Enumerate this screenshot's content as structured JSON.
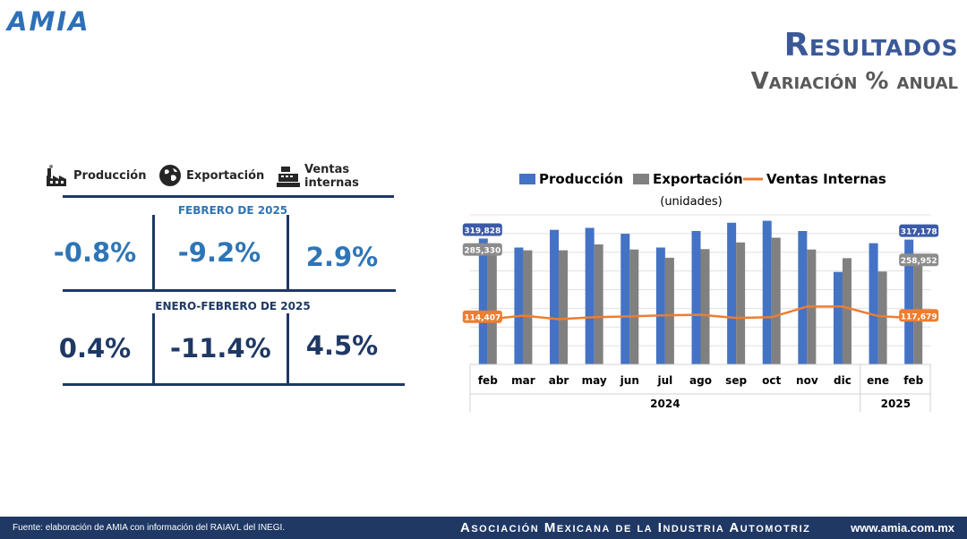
{
  "brand": {
    "logo_text": "AMIA",
    "color": "#2e6fb7"
  },
  "header": {
    "title": "Resultados",
    "subtitle": "Variación % anual"
  },
  "kpi_panel": {
    "legend": [
      {
        "label": "Producción",
        "icon": "factory-icon"
      },
      {
        "label": "Exportación",
        "icon": "globe-icon"
      },
      {
        "label": "Ventas internas",
        "icon": "cash-register-icon"
      }
    ],
    "period_1": {
      "label": "FEBRERO DE 2025",
      "values": [
        "-0.8%",
        "-9.2%",
        "2.9%"
      ]
    },
    "period_2": {
      "label": "ENERO-FEBRERO DE 2025",
      "values": [
        "0.4%",
        "-11.4%",
        "4.5%"
      ]
    }
  },
  "chart_data": {
    "type": "bar",
    "legend_position": "top",
    "subtitle": "(unidades)",
    "categories": [
      "feb",
      "mar",
      "abr",
      "may",
      "jun",
      "jul",
      "ago",
      "sep",
      "oct",
      "nov",
      "dic",
      "ene",
      "feb"
    ],
    "year_groups": [
      {
        "label": "2024",
        "span": 11
      },
      {
        "label": "2025",
        "span": 2
      }
    ],
    "ylim": [
      0,
      380000
    ],
    "grid": true,
    "series": [
      {
        "name": "Producción",
        "type": "bar",
        "color": "#4472c4",
        "values": [
          319828,
          297000,
          342000,
          347000,
          332000,
          297000,
          339000,
          360000,
          365000,
          339000,
          235000,
          308000,
          317178
        ]
      },
      {
        "name": "Exportación",
        "type": "bar",
        "color": "#808080",
        "values": [
          285330,
          290000,
          290000,
          305000,
          292000,
          271000,
          293000,
          310000,
          322000,
          292000,
          270000,
          236000,
          258952
        ]
      },
      {
        "name": "Ventas Internas",
        "type": "line",
        "color": "#ed7d31",
        "values": [
          114407,
          124000,
          115000,
          120000,
          122000,
          125000,
          126000,
          118000,
          120000,
          147000,
          147000,
          123000,
          117679
        ]
      }
    ],
    "data_labels": [
      {
        "series": 0,
        "index": 0,
        "text": "319,828"
      },
      {
        "series": 1,
        "index": 0,
        "text": "285,330"
      },
      {
        "series": 2,
        "index": 0,
        "text": "114,407"
      },
      {
        "series": 0,
        "index": 12,
        "text": "317,178"
      },
      {
        "series": 1,
        "index": 12,
        "text": "258,952"
      },
      {
        "series": 2,
        "index": 12,
        "text": "117,679"
      }
    ]
  },
  "footer": {
    "source": "Fuente: elaboración de AMIA con información del RAIAVL del INEGI.",
    "organization": "Asociación Mexicana de la Industria Automotriz",
    "website": "www.amia.com.mx"
  }
}
